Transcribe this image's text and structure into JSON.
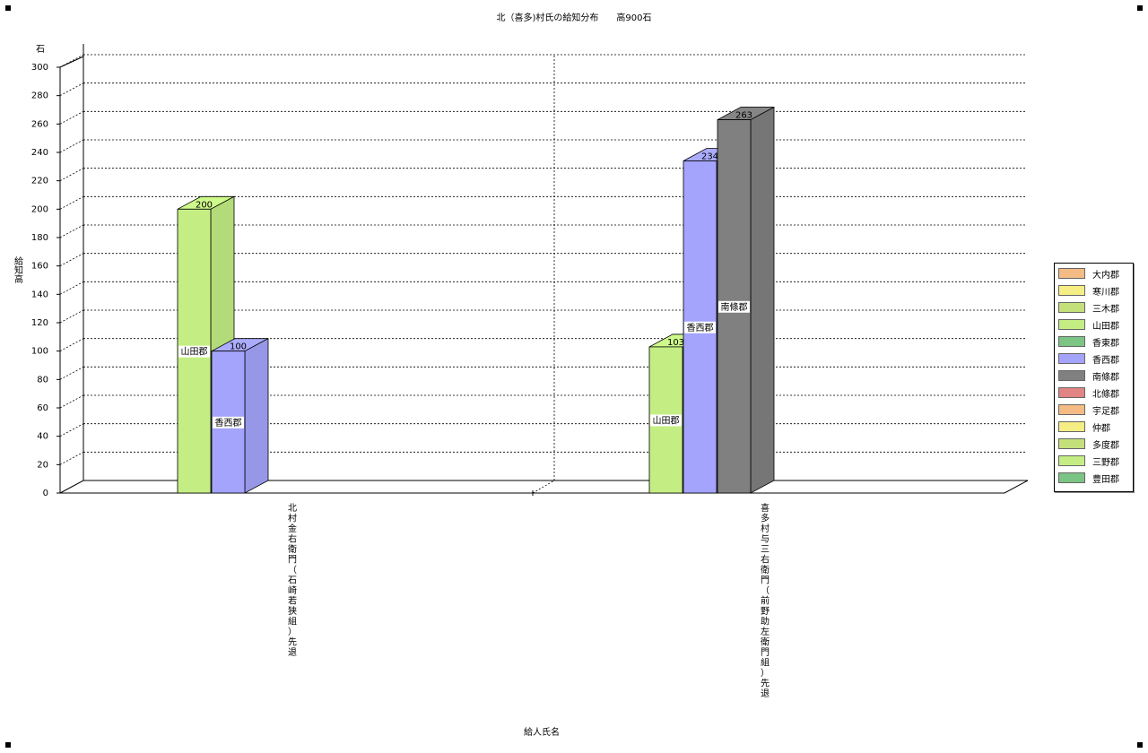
{
  "title": "北（喜多)村氏の給知分布　　高900石",
  "y_unit": "石",
  "y_axis_label": "給知高",
  "x_axis_label": "給人氏名",
  "chart_data": {
    "type": "bar",
    "title": "北（喜多)村氏の給知分布　　高900石",
    "xlabel": "給人氏名",
    "ylabel": "給知高",
    "ylim": [
      0,
      300
    ],
    "yticks": [
      0,
      20,
      40,
      60,
      80,
      100,
      120,
      140,
      160,
      180,
      200,
      220,
      240,
      260,
      280,
      300
    ],
    "grid": true,
    "legend_position": "right",
    "categories": [
      "北村金右衛門（石崎若狭組）先退",
      "喜多村与三右衛門（前野助左衛門組）先退"
    ],
    "series": [
      {
        "name": "大内郡",
        "color": "#F4BC84",
        "values": [
          0,
          0
        ]
      },
      {
        "name": "寒川郡",
        "color": "#F4EE84",
        "values": [
          0,
          0
        ]
      },
      {
        "name": "三木郡",
        "color": "#C4E07A",
        "values": [
          0,
          0
        ]
      },
      {
        "name": "山田郡",
        "color": "#C4EE84",
        "values": [
          200,
          103
        ]
      },
      {
        "name": "香東郡",
        "color": "#7CC484",
        "values": [
          0,
          0
        ]
      },
      {
        "name": "香西郡",
        "color": "#A4A4FC",
        "values": [
          100,
          234
        ]
      },
      {
        "name": "南條郡",
        "color": "#808080",
        "values": [
          0,
          263
        ]
      },
      {
        "name": "北條郡",
        "color": "#E08484",
        "values": [
          0,
          0
        ]
      },
      {
        "name": "宇足郡",
        "color": "#F4BC84",
        "values": [
          0,
          0
        ]
      },
      {
        "name": "仲郡",
        "color": "#F4EE84",
        "values": [
          0,
          0
        ]
      },
      {
        "name": "多度郡",
        "color": "#C4E07A",
        "values": [
          0,
          0
        ]
      },
      {
        "name": "三野郡",
        "color": "#C4EE84",
        "values": [
          0,
          0
        ]
      },
      {
        "name": "豊田郡",
        "color": "#7CC484",
        "values": [
          0,
          0
        ]
      }
    ],
    "bars": [
      {
        "category": 0,
        "series": "山田郡",
        "value": 200,
        "value_label": "200",
        "inner_label": "山田郡"
      },
      {
        "category": 0,
        "series": "香西郡",
        "value": 100,
        "value_label": "100",
        "inner_label": "香西郡"
      },
      {
        "category": 1,
        "series": "山田郡",
        "value": 103,
        "value_label": "103",
        "inner_label": "山田郡"
      },
      {
        "category": 1,
        "series": "香西郡",
        "value": 234,
        "value_label": "234",
        "inner_label": "香西郡"
      },
      {
        "category": 1,
        "series": "南條郡",
        "value": 263,
        "value_label": "263",
        "inner_label": "南條郡"
      }
    ]
  }
}
